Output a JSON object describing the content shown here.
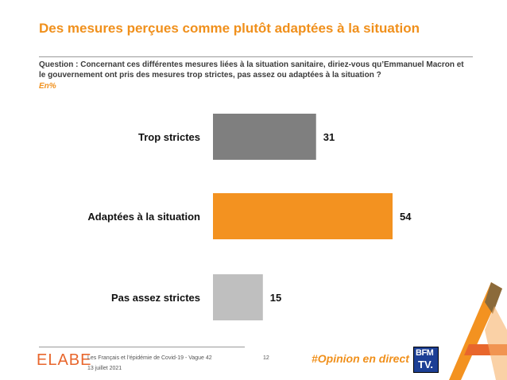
{
  "header": {
    "title": "Des mesures perçues comme plutôt adaptées à la situation",
    "question": "Question : Concernant ces différentes mesures liées à la situation sanitaire, diriez-vous qu’Emmanuel Macron et le gouvernement ont pris des mesures trop strictes, pas assez ou adaptées à la situation ?",
    "unit": "En%"
  },
  "chart_data": {
    "type": "bar",
    "orientation": "horizontal",
    "categories": [
      "Trop strictes",
      "Adaptées à la situation",
      "Pas assez strictes"
    ],
    "values": [
      31,
      54,
      15
    ],
    "colors": [
      "#7f7f7f",
      "#f39220",
      "#bfbfbf"
    ],
    "title": "",
    "xlabel": "",
    "ylabel": "",
    "xlim": [
      0,
      54
    ]
  },
  "footer": {
    "logo": "ELABE",
    "study": "Les Français et l’épidémie de Covid-19 - Vague 42",
    "date": "13 juillet 2021",
    "page": "12",
    "hashtag": "#Opinion en direct",
    "partner_logo_line1": "BFM",
    "partner_logo_line2": "TV."
  },
  "colors": {
    "accent": "#f0901c"
  }
}
